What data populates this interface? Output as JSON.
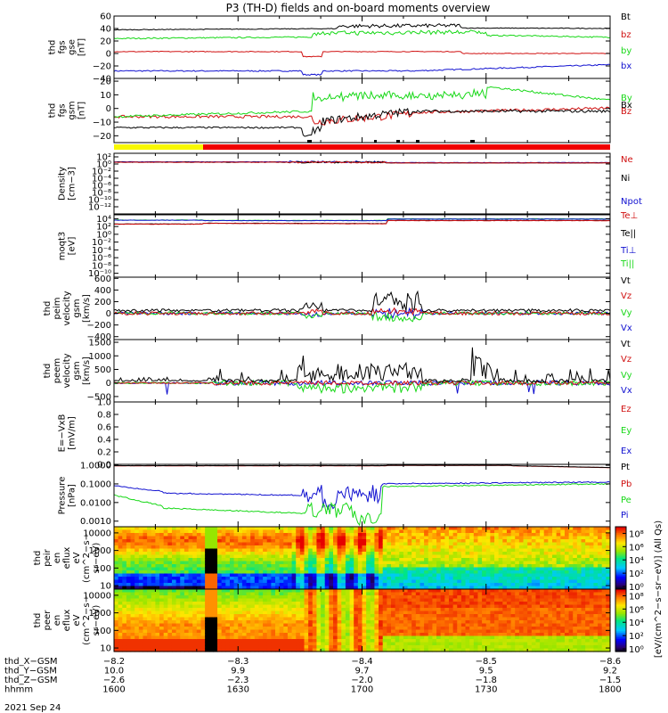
{
  "title": "P3 (TH-D) fields and on-board moments overview",
  "date_label": "2021 Sep 24",
  "colors": {
    "black": "#000000",
    "red": "#d01010",
    "green": "#18d818",
    "blue": "#1010d0",
    "yellow": "#f8f800",
    "status_red": "#f00000"
  },
  "chart_data": [
    {
      "id": "fgs_gse",
      "type": "line",
      "ylabel": [
        "thd",
        "fgs",
        "gse",
        "[nT]"
      ],
      "ylim": [
        -40,
        60
      ],
      "yticks": [
        "60",
        "40",
        "20",
        "0",
        "−20",
        "−40"
      ],
      "ytick_values": [
        60,
        40,
        20,
        0,
        -20,
        -40
      ],
      "series": [
        {
          "name": "Bt",
          "color": "black",
          "level": 40
        },
        {
          "name": "bz",
          "color": "red",
          "level": 3
        },
        {
          "name": "by",
          "color": "green",
          "level": 25
        },
        {
          "name": "bx",
          "color": "blue",
          "level": -27
        }
      ]
    },
    {
      "id": "fgs_gsm",
      "type": "line",
      "ylabel": [
        "thd",
        "fgs",
        "gsm",
        "[nT]"
      ],
      "ylim": [
        -25,
        22
      ],
      "yticks": [
        "20",
        "10",
        "0",
        "−10",
        "−20"
      ],
      "ytick_values": [
        20,
        10,
        0,
        -10,
        -20
      ],
      "series": [
        {
          "name": "By",
          "color": "green",
          "level": 6
        },
        {
          "name": "Bx",
          "color": "black",
          "level": -12
        },
        {
          "name": "Bz",
          "color": "red",
          "level": -5
        }
      ]
    },
    {
      "id": "density",
      "type": "line",
      "ylabel": [
        "Density",
        "[cm−3]"
      ],
      "log": true,
      "ylim_exp": [
        -14,
        3
      ],
      "yticks": [
        "10²",
        "10⁰",
        "10⁻²",
        "10⁻⁴",
        "10⁻⁶",
        "10⁻⁸",
        "10⁻¹⁰",
        "10⁻¹²"
      ],
      "ytick_exp": [
        2,
        0,
        -2,
        -4,
        -6,
        -8,
        -10,
        -12
      ],
      "series": [
        {
          "name": "Ne",
          "color": "red",
          "level": 0.5
        },
        {
          "name": "Ni",
          "color": "black",
          "level": 0.5
        },
        {
          "name": "Npot",
          "color": "blue",
          "level": 0.6
        }
      ]
    },
    {
      "id": "temperature",
      "type": "line",
      "ylabel": [
        "moqt3",
        "[eV]"
      ],
      "log": true,
      "ylim_exp": [
        -11,
        5
      ],
      "yticks": [
        "10⁴",
        "10²",
        "10⁰",
        "10⁻²",
        "10⁻⁴",
        "10⁻⁶",
        "10⁻⁸",
        "10⁻¹⁰"
      ],
      "ytick_exp": [
        4,
        2,
        0,
        -2,
        -4,
        -6,
        -8,
        -10
      ],
      "series": [
        {
          "name": "Te⊥",
          "color": "red",
          "level": 3.3
        },
        {
          "name": "Te||",
          "color": "black",
          "level": 3.4
        },
        {
          "name": "Ti⊥",
          "color": "blue",
          "level": 3.7
        },
        {
          "name": "Ti||",
          "color": "green",
          "level": 3.8
        }
      ]
    },
    {
      "id": "peim_velocity",
      "type": "line",
      "ylabel": [
        "thd",
        "peim",
        "velocity",
        "gsm",
        "[km/s]"
      ],
      "ylim": [
        -450,
        620
      ],
      "yticks": [
        "600",
        "400",
        "200",
        "0",
        "−200",
        "−400"
      ],
      "ytick_values": [
        600,
        400,
        200,
        0,
        -200,
        -400
      ],
      "series": [
        {
          "name": "Vt",
          "color": "black"
        },
        {
          "name": "Vz",
          "color": "red"
        },
        {
          "name": "Vy",
          "color": "green"
        },
        {
          "name": "Vx",
          "color": "blue"
        }
      ]
    },
    {
      "id": "peem_velocity",
      "type": "line",
      "ylabel": [
        "thd",
        "peem",
        "velocity",
        "gsm",
        "[km/s]"
      ],
      "ylim": [
        -700,
        1600
      ],
      "yticks": [
        "1500",
        "1000",
        "500",
        "0",
        "−500"
      ],
      "ytick_values": [
        1500,
        1000,
        500,
        0,
        -500
      ],
      "series": [
        {
          "name": "Vt",
          "color": "black"
        },
        {
          "name": "Vz",
          "color": "red"
        },
        {
          "name": "Vy",
          "color": "green"
        },
        {
          "name": "Vx",
          "color": "blue"
        }
      ]
    },
    {
      "id": "efield",
      "type": "line",
      "ylabel": [
        "E=−VxB",
        "[mV/m]"
      ],
      "ylim": [
        0,
        1
      ],
      "yticks": [
        "1.0",
        "0.8",
        "0.6",
        "0.4",
        "0.2",
        "0.0"
      ],
      "ytick_values": [
        1,
        0.8,
        0.6,
        0.4,
        0.2,
        0
      ],
      "series": [
        {
          "name": "Ez",
          "color": "red"
        },
        {
          "name": "Ey",
          "color": "green"
        },
        {
          "name": "Ex",
          "color": "blue"
        }
      ]
    },
    {
      "id": "pressure",
      "type": "line",
      "ylabel": [
        "Pressure",
        "[nPa]"
      ],
      "log": true,
      "ylim_exp": [
        -3.3,
        0.05
      ],
      "yticks": [
        "1.0000",
        "0.1000",
        "0.0100",
        "0.0010"
      ],
      "ytick_exp": [
        0,
        -1,
        -2,
        -3
      ],
      "series": [
        {
          "name": "Pt",
          "color": "black"
        },
        {
          "name": "Pb",
          "color": "red"
        },
        {
          "name": "Pe",
          "color": "green"
        },
        {
          "name": "Pi",
          "color": "blue"
        }
      ]
    },
    {
      "id": "peir_eflux",
      "type": "heatmap",
      "ylabel": [
        "thd",
        "peir",
        "en",
        "eflux",
        "eV",
        "(cm^2−s−",
        "sr−eV)"
      ],
      "log": true,
      "ylim_exp": [
        0.8,
        4.35
      ],
      "yticks": [
        "10000",
        "1000",
        "100",
        "10"
      ],
      "ytick_exp": [
        4,
        3,
        2,
        1
      ]
    },
    {
      "id": "peer_eflux",
      "type": "heatmap",
      "ylabel": [
        "thd",
        "peer",
        "en",
        "eflux",
        "eV",
        "(cm^2−s−",
        "sr−eV)"
      ],
      "log": true,
      "ylim_exp": [
        0.8,
        4.35
      ],
      "yticks": [
        "10000",
        "1000",
        "100",
        "10"
      ],
      "ytick_exp": [
        4,
        3,
        2,
        1
      ]
    }
  ],
  "colorbar": {
    "label": "[eV/(cm^2−s−sr−eV)] (All Qs)",
    "top": {
      "ticks": [
        "10⁸",
        "10⁶",
        "10⁴",
        "10²",
        "10⁰"
      ],
      "exp": [
        8,
        6,
        4,
        2,
        0
      ],
      "range_exp": [
        -0.4,
        9
      ]
    },
    "bottom": {
      "ticks": [
        "10⁸",
        "10⁶",
        "10⁴",
        "10²",
        "10⁰"
      ],
      "exp": [
        8,
        6,
        4,
        2,
        0
      ],
      "range_exp": [
        -0.4,
        9
      ]
    }
  },
  "x_axis": {
    "rows": [
      {
        "label": "thd_X−GSM",
        "values": [
          "−8.2",
          "−8.3",
          "−8.4",
          "−8.5",
          "−8.6"
        ]
      },
      {
        "label": "thd_Y−GSM",
        "values": [
          "10.0",
          "9.9",
          "9.7",
          "9.5",
          "9.2"
        ]
      },
      {
        "label": "thd_Z−GSM",
        "values": [
          "−2.6",
          "−2.3",
          "−2.0",
          "−1.8",
          "−1.5"
        ]
      },
      {
        "label": "hhmm",
        "values": [
          "1600",
          "1630",
          "1700",
          "1730",
          "1800"
        ]
      }
    ],
    "tick_minutes": [
      0,
      30,
      60,
      90,
      120
    ],
    "range_minutes": [
      0,
      120
    ]
  }
}
